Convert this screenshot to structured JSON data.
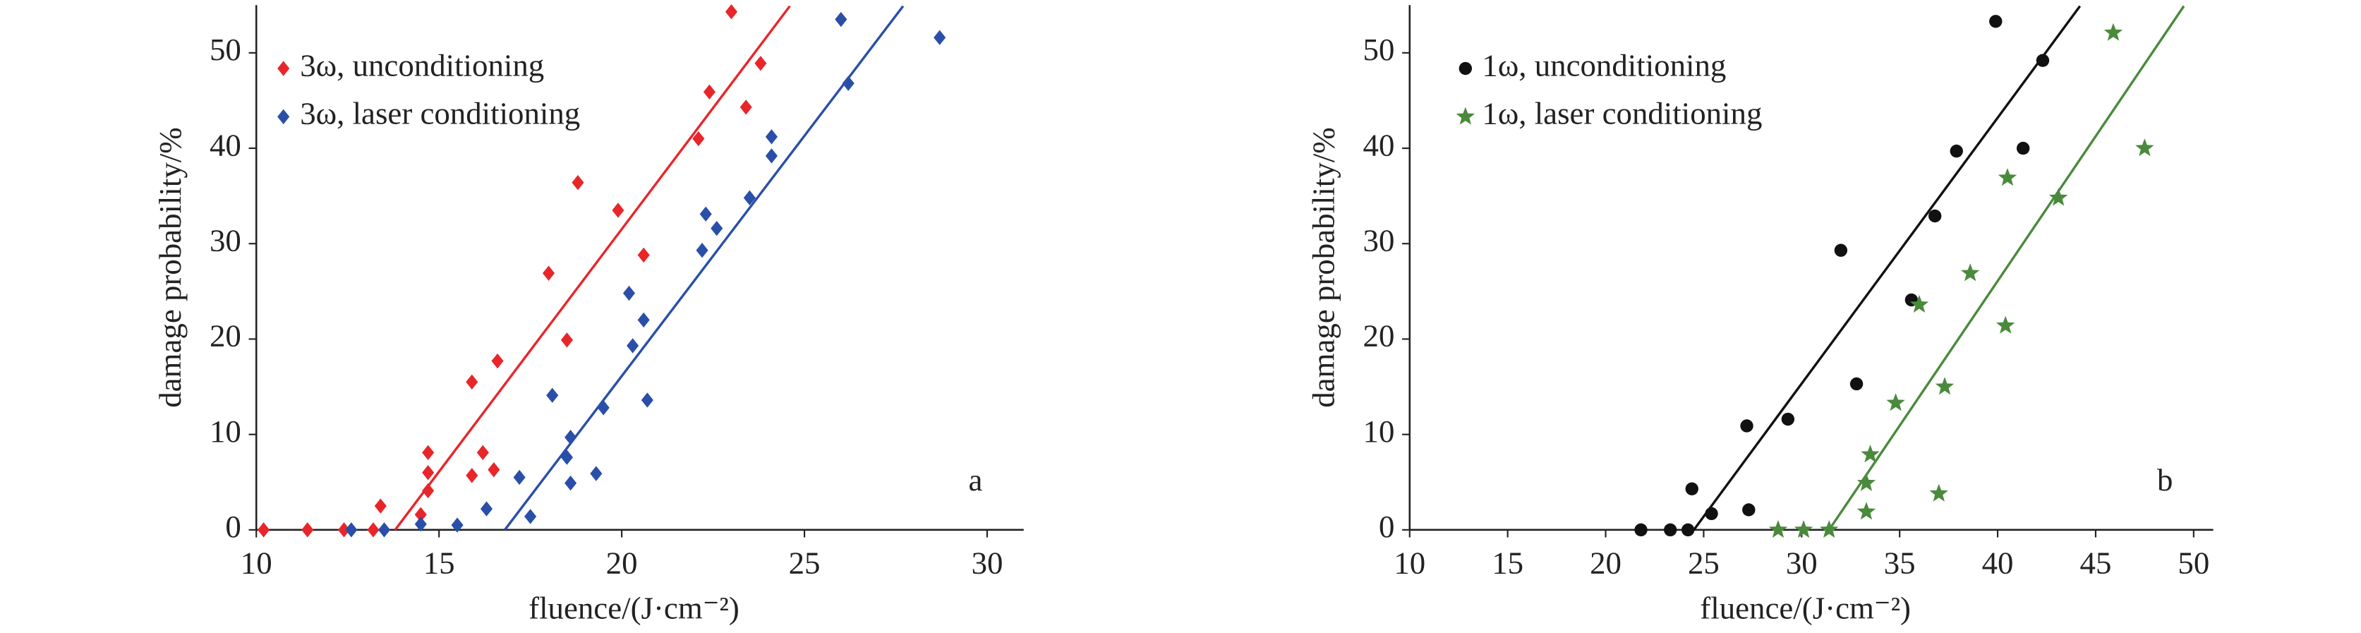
{
  "chart_data": [
    {
      "type": "scatter",
      "annotation": "a",
      "xlabel": "fluence/(J·cm⁻²)",
      "ylabel": "damage probability/%",
      "xlim": [
        10,
        31
      ],
      "ylim": [
        0,
        55
      ],
      "xticks": [
        10,
        15,
        20,
        25,
        30
      ],
      "yticks": [
        0,
        10,
        20,
        30,
        40,
        50
      ],
      "series": [
        {
          "name": "3ω, unconditioning",
          "color": "#e8262a",
          "marker": "diamond",
          "x": [
            10.2,
            11.4,
            12.4,
            13.2,
            13.4,
            14.5,
            14.7,
            14.7,
            14.7,
            15.9,
            15.9,
            16.2,
            16.5,
            16.6,
            18.0,
            18.5,
            18.8,
            19.9,
            20.6,
            22.1,
            22.4,
            23.0,
            23.4,
            23.8
          ],
          "values": [
            0,
            0,
            0,
            0,
            2.5,
            1.6,
            8.1,
            6.0,
            4.1,
            15.5,
            5.7,
            8.1,
            6.3,
            17.7,
            26.9,
            19.9,
            36.4,
            33.5,
            28.8,
            41.0,
            45.9,
            54.3,
            44.3,
            48.9
          ]
        },
        {
          "name": "3ω, laser conditioning",
          "color": "#2a4fa8",
          "marker": "diamond",
          "x": [
            12.6,
            13.5,
            14.5,
            15.5,
            16.3,
            17.2,
            17.5,
            18.1,
            18.5,
            18.6,
            18.6,
            19.3,
            19.5,
            20.2,
            20.3,
            20.6,
            20.7,
            22.2,
            22.3,
            22.6,
            23.5,
            24.1,
            24.1,
            26.0,
            26.2,
            28.7
          ],
          "values": [
            0,
            0,
            0.6,
            0.5,
            2.2,
            5.5,
            1.4,
            14.1,
            7.6,
            9.7,
            4.9,
            5.9,
            12.8,
            24.8,
            19.3,
            22.0,
            13.6,
            29.3,
            33.1,
            31.6,
            34.8,
            41.2,
            39.2,
            53.5,
            46.8,
            51.6
          ]
        }
      ],
      "fit_lines": [
        {
          "color": "#e8262a",
          "x": [
            13.8,
            24.6
          ],
          "values": [
            0,
            54.9
          ]
        },
        {
          "color": "#2a4fa8",
          "x": [
            16.8,
            27.7
          ],
          "values": [
            0,
            54.9
          ]
        }
      ]
    },
    {
      "type": "scatter",
      "annotation": "b",
      "xlabel": "fluence/(J·cm⁻²)",
      "ylabel": "damage probability/%",
      "xlim": [
        10,
        51
      ],
      "ylim": [
        0,
        55
      ],
      "xticks": [
        10,
        15,
        20,
        25,
        30,
        35,
        40,
        45,
        50
      ],
      "yticks": [
        0,
        10,
        20,
        30,
        40,
        50
      ],
      "series": [
        {
          "name": "1ω, unconditioning",
          "color": "#111111",
          "marker": "circle",
          "x": [
            21.8,
            23.3,
            24.2,
            24.4,
            25.4,
            27.2,
            27.3,
            29.3,
            32.0,
            32.8,
            35.6,
            36.8,
            37.9,
            39.9,
            41.3,
            42.3
          ],
          "values": [
            0,
            0,
            0,
            4.3,
            1.7,
            10.9,
            2.1,
            11.6,
            29.3,
            15.3,
            24.1,
            32.9,
            39.7,
            53.3,
            40.0,
            49.2
          ]
        },
        {
          "name": "1ω, laser conditioning",
          "color": "#4a8a3c",
          "marker": "star",
          "x": [
            28.8,
            30.1,
            31.4,
            33.3,
            33.3,
            33.5,
            37.0,
            34.8,
            36.0,
            37.3,
            38.6,
            40.4,
            40.5,
            43.1,
            45.9,
            47.5
          ],
          "values": [
            0,
            0,
            0,
            1.9,
            4.9,
            7.9,
            3.8,
            13.3,
            23.6,
            15.0,
            26.9,
            21.4,
            36.9,
            34.8,
            52.1,
            40.0
          ]
        }
      ],
      "fit_lines": [
        {
          "color": "#111111",
          "x": [
            24.5,
            44.2
          ],
          "values": [
            0,
            54.9
          ]
        },
        {
          "color": "#4a8a3c",
          "x": [
            31.4,
            49.5
          ],
          "values": [
            0,
            54.9
          ]
        }
      ]
    }
  ]
}
